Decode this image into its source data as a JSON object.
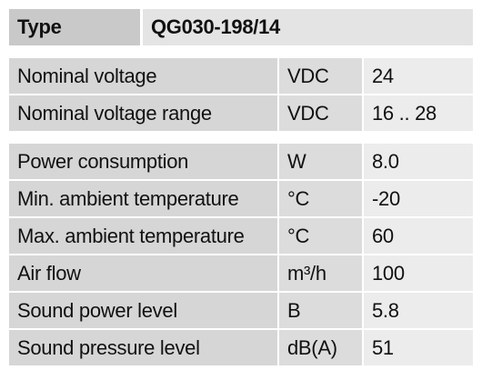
{
  "header": {
    "label": "Type",
    "value": "QG030-198/14"
  },
  "groups": [
    [
      {
        "label": "Nominal voltage",
        "unit": "VDC",
        "value": "24"
      },
      {
        "label": "Nominal voltage range",
        "unit": "VDC",
        "value": "16 .. 28"
      }
    ],
    [
      {
        "label": "Power consumption",
        "unit": "W",
        "value": "8.0"
      },
      {
        "label": "Min. ambient temperature",
        "unit": "°C",
        "value": "-20"
      },
      {
        "label": "Max. ambient temperature",
        "unit": "°C",
        "value": "60"
      },
      {
        "label": "Air flow",
        "unit": "m³/h",
        "value": "100"
      },
      {
        "label": "Sound power level",
        "unit": "B",
        "value": "5.8"
      },
      {
        "label": "Sound pressure level",
        "unit": "dB(A)",
        "value": "51"
      }
    ]
  ]
}
